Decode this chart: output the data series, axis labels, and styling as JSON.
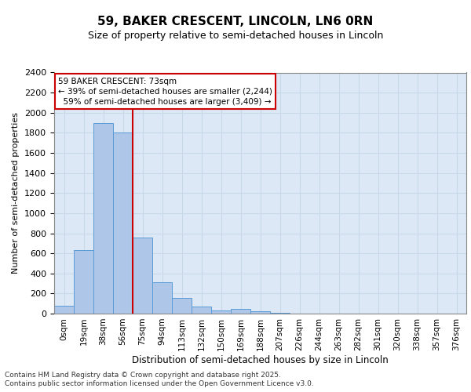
{
  "title1": "59, BAKER CRESCENT, LINCOLN, LN6 0RN",
  "title2": "Size of property relative to semi-detached houses in Lincoln",
  "xlabel": "Distribution of semi-detached houses by size in Lincoln",
  "ylabel": "Number of semi-detached properties",
  "property_label": "59 BAKER CRESCENT: 73sqm",
  "pct_smaller": 39,
  "pct_larger": 59,
  "count_smaller": 2244,
  "count_larger": 3409,
  "bin_labels": [
    "0sqm",
    "19sqm",
    "38sqm",
    "56sqm",
    "75sqm",
    "94sqm",
    "113sqm",
    "132sqm",
    "150sqm",
    "169sqm",
    "188sqm",
    "207sqm",
    "226sqm",
    "244sqm",
    "263sqm",
    "282sqm",
    "301sqm",
    "320sqm",
    "338sqm",
    "357sqm",
    "376sqm"
  ],
  "bar_values": [
    80,
    630,
    1900,
    1800,
    760,
    310,
    160,
    70,
    30,
    50,
    20,
    5,
    0,
    0,
    0,
    0,
    0,
    0,
    0,
    0,
    0
  ],
  "bar_color": "#aec6e8",
  "bar_edge_color": "#5b9bd5",
  "vline_color": "#cc0000",
  "vline_x_idx": 3.5,
  "grid_color": "#c8d8e8",
  "background_color": "#dce8f5",
  "ylim_max": 2400,
  "ytick_step": 200,
  "footer_line1": "Contains HM Land Registry data © Crown copyright and database right 2025.",
  "footer_line2": "Contains public sector information licensed under the Open Government Licence v3.0."
}
